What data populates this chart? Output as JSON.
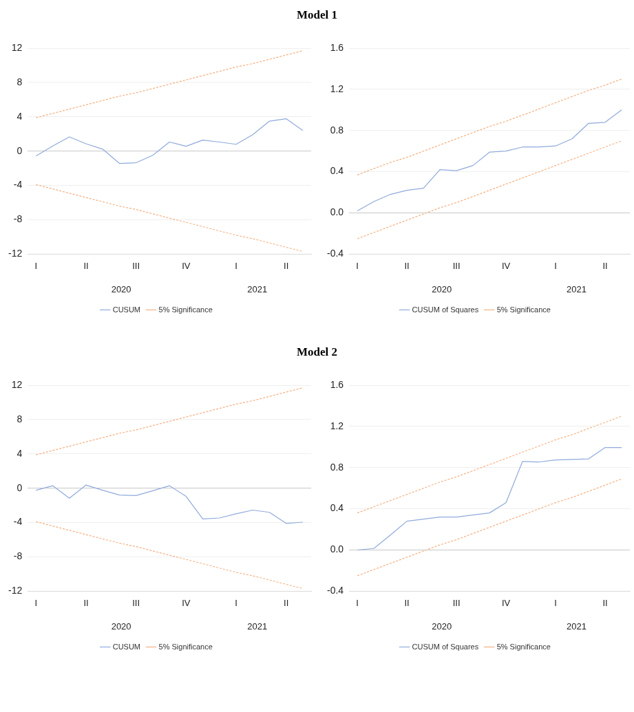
{
  "chart_data": [
    {
      "type": "line",
      "title": "Model 1",
      "categories": [
        "I",
        null,
        null,
        "II",
        null,
        null,
        "III",
        null,
        null,
        "IV",
        null,
        null,
        "I",
        null,
        null,
        "II",
        null
      ],
      "series": [
        {
          "name": "CUSUM",
          "color": "#8faadc",
          "line_style": "solid",
          "values": [
            -0.57,
            0.6,
            1.66,
            0.86,
            0.23,
            -1.43,
            -1.35,
            -0.49,
            1.06,
            0.57,
            1.29,
            1.06,
            0.8,
            1.92,
            3.5,
            3.78,
            2.41
          ]
        },
        {
          "name": "5% Significance",
          "color": "#f4b183",
          "line_style": "dashed",
          "values": [
            3.9,
            4.4,
            4.9,
            5.4,
            5.9,
            6.4,
            6.8,
            7.3,
            7.8,
            8.3,
            8.8,
            9.3,
            9.8,
            10.2,
            10.7,
            11.2,
            11.7
          ]
        },
        {
          "color": "#f4b183",
          "line_style": "dashed",
          "values": [
            -3.9,
            -4.4,
            -4.9,
            -5.4,
            -5.9,
            -6.4,
            -6.8,
            -7.3,
            -7.8,
            -8.3,
            -8.8,
            -9.3,
            -9.8,
            -10.2,
            -10.7,
            -11.2,
            -11.7
          ]
        }
      ],
      "ylim": [
        -12,
        12
      ],
      "yticks": [
        -12,
        -8,
        -4,
        0,
        4,
        8,
        12
      ],
      "grid": "y",
      "legend": "bottom",
      "annotations": [
        "2020",
        "2021"
      ]
    },
    {
      "type": "line",
      "categories": [
        "I",
        null,
        null,
        "II",
        null,
        null,
        "III",
        null,
        null,
        "IV",
        null,
        null,
        "I",
        null,
        null,
        "II",
        null
      ],
      "series": [
        {
          "name": "CUSUM of Squares",
          "color": "#8faadc",
          "line_style": "solid",
          "values": [
            0.02,
            0.11,
            0.18,
            0.22,
            0.24,
            0.42,
            0.41,
            0.46,
            0.59,
            0.6,
            0.64,
            0.64,
            0.65,
            0.72,
            0.87,
            0.88,
            1.0
          ]
        },
        {
          "name": "5% Significance",
          "color": "#f4b183",
          "line_style": "dashed",
          "values": [
            0.37,
            0.43,
            0.49,
            0.54,
            0.6,
            0.66,
            0.72,
            0.78,
            0.84,
            0.89,
            0.95,
            1.01,
            1.07,
            1.13,
            1.19,
            1.24,
            1.3
          ]
        },
        {
          "color": "#f4b183",
          "line_style": "dashed",
          "values": [
            -0.25,
            -0.19,
            -0.13,
            -0.07,
            -0.01,
            0.05,
            0.1,
            0.16,
            0.22,
            0.28,
            0.34,
            0.4,
            0.46,
            0.52,
            0.58,
            0.64,
            0.7
          ]
        }
      ],
      "ylim": [
        -0.4,
        1.6
      ],
      "yticks": [
        -0.4,
        {
          "value": 0,
          "label": "0.0"
        },
        0.4,
        0.8,
        1.2,
        1.6
      ],
      "grid": "y",
      "legend": "bottom",
      "annotations": [
        "2020",
        "2021"
      ]
    },
    {
      "type": "line",
      "title": "Model 2",
      "categories": [
        "I",
        null,
        null,
        "II",
        null,
        null,
        "III",
        null,
        null,
        "IV",
        null,
        null,
        "I",
        null,
        null,
        "II",
        null
      ],
      "series": [
        {
          "name": "CUSUM",
          "color": "#8faadc",
          "line_style": "solid",
          "values": [
            -0.23,
            0.29,
            -1.17,
            0.37,
            -0.23,
            -0.8,
            -0.86,
            -0.29,
            0.29,
            -0.95,
            -3.58,
            -3.47,
            -2.98,
            -2.55,
            -2.81,
            -4.1,
            -3.95
          ]
        },
        {
          "name": "5% Significance",
          "color": "#f4b183",
          "line_style": "dashed",
          "values": [
            3.9,
            4.4,
            4.9,
            5.4,
            5.9,
            6.4,
            6.8,
            7.3,
            7.8,
            8.3,
            8.8,
            9.3,
            9.8,
            10.2,
            10.7,
            11.2,
            11.7
          ]
        },
        {
          "color": "#f4b183",
          "line_style": "dashed",
          "values": [
            -3.9,
            -4.4,
            -4.9,
            -5.4,
            -5.9,
            -6.4,
            -6.8,
            -7.3,
            -7.8,
            -8.3,
            -8.8,
            -9.3,
            -9.8,
            -10.2,
            -10.7,
            -11.2,
            -11.7
          ]
        }
      ],
      "ylim": [
        -12,
        12
      ],
      "yticks": [
        -12,
        -8,
        -4,
        0,
        4,
        8,
        12
      ],
      "grid": "y",
      "legend": "bottom",
      "annotations": [
        "2020",
        "2021"
      ]
    },
    {
      "type": "line",
      "categories": [
        "I",
        null,
        null,
        "II",
        null,
        null,
        "III",
        null,
        null,
        "IV",
        null,
        null,
        "I",
        null,
        null,
        "II",
        null
      ],
      "series": [
        {
          "name": "CUSUM of Squares",
          "color": "#8faadc",
          "line_style": "solid",
          "values": [
            0.0,
            0.015,
            0.145,
            0.28,
            0.3,
            0.32,
            0.32,
            0.34,
            0.36,
            0.46,
            0.86,
            0.855,
            0.875,
            0.88,
            0.885,
            0.995,
            0.995
          ]
        },
        {
          "name": "5% Significance",
          "color": "#f4b183",
          "line_style": "dashed",
          "values": [
            0.36,
            0.42,
            0.48,
            0.54,
            0.6,
            0.66,
            0.71,
            0.77,
            0.83,
            0.89,
            0.95,
            1.01,
            1.07,
            1.12,
            1.18,
            1.24,
            1.3
          ]
        },
        {
          "color": "#f4b183",
          "line_style": "dashed",
          "values": [
            -0.25,
            -0.19,
            -0.13,
            -0.07,
            -0.01,
            0.05,
            0.1,
            0.16,
            0.22,
            0.28,
            0.34,
            0.4,
            0.46,
            0.51,
            0.57,
            0.63,
            0.69
          ]
        }
      ],
      "ylim": [
        -0.4,
        1.6
      ],
      "yticks": [
        -0.4,
        {
          "value": 0,
          "label": "0.0"
        },
        0.4,
        0.8,
        1.2,
        1.6
      ],
      "grid": "y",
      "legend": "bottom",
      "annotations": [
        "2020",
        "2021"
      ]
    }
  ]
}
